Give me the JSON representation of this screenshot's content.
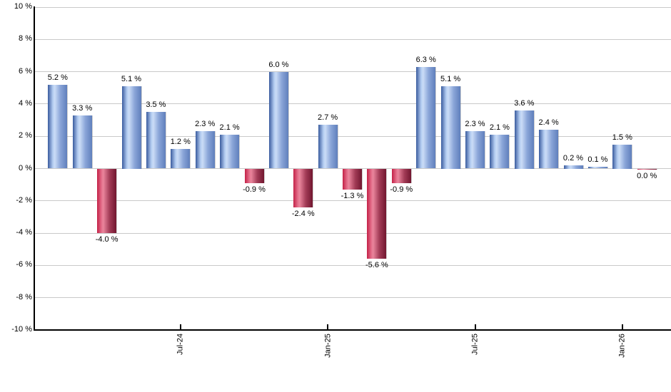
{
  "chart_data": {
    "type": "bar",
    "title": "",
    "xlabel": "",
    "ylabel": "",
    "ylim": [
      -10,
      10
    ],
    "grid": "horizontal-only",
    "legend": "none",
    "value_label_format": "0.0 %",
    "y_ticks": [
      {
        "value": 10,
        "label": "10 %"
      },
      {
        "value": 8,
        "label": "8 %"
      },
      {
        "value": 6,
        "label": "6 %"
      },
      {
        "value": 4,
        "label": "4 %"
      },
      {
        "value": 2,
        "label": "2 %"
      },
      {
        "value": 0,
        "label": "0 %"
      },
      {
        "value": -2,
        "label": "-2 %"
      },
      {
        "value": -4,
        "label": "-4 %"
      },
      {
        "value": -6,
        "label": "-6 %"
      },
      {
        "value": -8,
        "label": "-8 %"
      },
      {
        "value": -10,
        "label": "-10 %"
      }
    ],
    "x_ticks": [
      {
        "bar_index": 5,
        "label": "Jul-24"
      },
      {
        "bar_index": 11,
        "label": "Jan-25"
      },
      {
        "bar_index": 17,
        "label": "Jul-25"
      },
      {
        "bar_index": 23,
        "label": "Jan-26"
      }
    ],
    "bars": [
      {
        "value": 5.2,
        "label": "5.2 %"
      },
      {
        "value": 3.3,
        "label": "3.3 %"
      },
      {
        "value": -4.0,
        "label": "-4.0 %"
      },
      {
        "value": 5.1,
        "label": "5.1 %"
      },
      {
        "value": 3.5,
        "label": "3.5 %"
      },
      {
        "value": 1.2,
        "label": "1.2 %"
      },
      {
        "value": 2.3,
        "label": "2.3 %"
      },
      {
        "value": 2.1,
        "label": "2.1 %"
      },
      {
        "value": -0.9,
        "label": "-0.9 %"
      },
      {
        "value": 6.0,
        "label": "6.0 %"
      },
      {
        "value": -2.4,
        "label": "-2.4 %"
      },
      {
        "value": 2.7,
        "label": "2.7 %"
      },
      {
        "value": -1.3,
        "label": "-1.3 %"
      },
      {
        "value": -5.6,
        "label": "-5.6 %"
      },
      {
        "value": -0.9,
        "label": "-0.9 %"
      },
      {
        "value": 6.3,
        "label": "6.3 %"
      },
      {
        "value": 5.1,
        "label": "5.1 %"
      },
      {
        "value": 2.3,
        "label": "2.3 %"
      },
      {
        "value": 2.1,
        "label": "2.1 %"
      },
      {
        "value": 3.6,
        "label": "3.6 %"
      },
      {
        "value": 2.4,
        "label": "2.4 %"
      },
      {
        "value": 0.2,
        "label": "0.2 %"
      },
      {
        "value": 0.1,
        "label": "0.1 %"
      },
      {
        "value": 1.5,
        "label": "1.5 %"
      },
      {
        "value": 0.0,
        "label": "0.0 %",
        "negative": true
      }
    ],
    "colors": {
      "positive_bar": "#7e9cd4",
      "positive_gradient": [
        "#3a5c9f",
        "#cadcf6",
        "#5f7fbc"
      ],
      "negative_bar": "#c22a4e",
      "negative_gradient": [
        "#c42147",
        "#ea859c",
        "#71162f"
      ],
      "gridline": "#c9c9c9",
      "axis": "#000000",
      "text": "#000000",
      "background": "#ffffff"
    }
  }
}
